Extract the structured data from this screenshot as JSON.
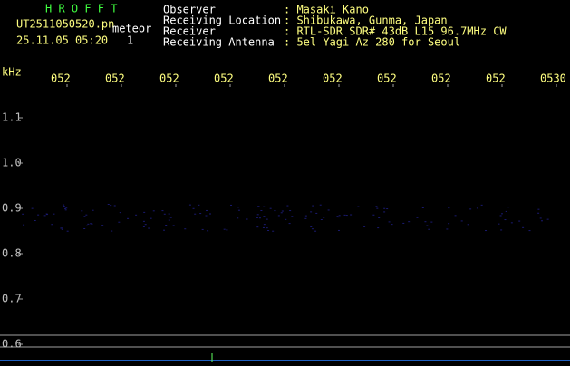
{
  "header": {
    "title": "H R O F F T",
    "file": "UT2511050520.pn",
    "mode": "meteor",
    "datetime": "25.11.05 05:20",
    "count": "1",
    "info": [
      {
        "label": "Observer",
        "value": ": Masaki Kano"
      },
      {
        "label": "Receiving Location",
        "value": ": Shibukawa, Gunma, Japan"
      },
      {
        "label": "Receiver",
        "value": ": RTL-SDR SDR# 43dB L15 96.7MHz CW"
      },
      {
        "label": "Receiving Antenna",
        "value": ": 5el Yagi Az 280 for Seoul"
      }
    ]
  },
  "axis": {
    "unit": "kHz",
    "y_labels": [
      "1.1",
      "1.0",
      "0.9",
      "0.8",
      "0.7",
      "0.6"
    ],
    "x_labels": [
      "052",
      "052",
      "052",
      "052",
      "052",
      "052",
      "052",
      "052",
      "052",
      "0530"
    ]
  }
}
